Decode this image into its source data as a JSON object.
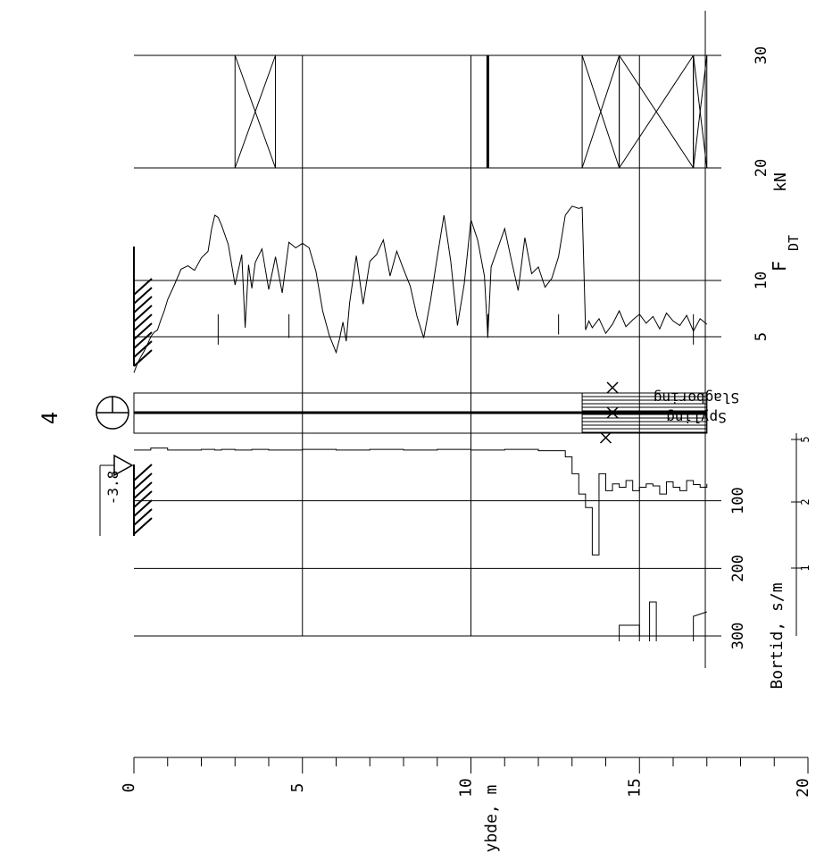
{
  "title": "4",
  "labels": {
    "depth_axis": "Dybde, m",
    "force_axis": "kN",
    "force_symbol": "F",
    "force_subscript": "DT",
    "drilltime_axis": "Bortid, s/m",
    "water_level": "-3.8",
    "flush_label": "Spyling",
    "hammer_label": "Slagboring"
  },
  "chart_data": {
    "type": "line",
    "orientation": "depth-down (rotated 90°)",
    "depth_axis": {
      "label": "Dybde, m",
      "range": [
        0,
        20
      ],
      "ticks": [
        0,
        5,
        10,
        15,
        20
      ],
      "minor_step": 1
    },
    "force_axis": {
      "label": "kN",
      "range": [
        0,
        30
      ],
      "ticks": [
        5,
        10,
        20,
        30
      ]
    },
    "drilltime_axis": {
      "label": "Bortid, s/m",
      "ticks": [
        100,
        200,
        300
      ],
      "secondary_ticks": [
        "1",
        "2",
        "5"
      ]
    },
    "water_level_depth": -3.8,
    "termination_depth": 17.0,
    "series": [
      {
        "name": "F_DT",
        "axis": "force",
        "depth": [
          0.0,
          0.1,
          0.2,
          0.3,
          0.4,
          0.5,
          0.6,
          0.7,
          0.8,
          0.9,
          1.0,
          1.2,
          1.4,
          1.6,
          1.8,
          2.0,
          2.2,
          2.3,
          2.4,
          2.5,
          2.6,
          2.8,
          3.0,
          3.2,
          3.3,
          3.4,
          3.5,
          3.6,
          3.8,
          4.0,
          4.2,
          4.4,
          4.6,
          4.8,
          5.0,
          5.2,
          5.4,
          5.6,
          5.8,
          6.0,
          6.1,
          6.2,
          6.3,
          6.4,
          6.5,
          6.6,
          6.8,
          7.0,
          7.2,
          7.4,
          7.6,
          7.8,
          8.0,
          8.2,
          8.4,
          8.6,
          8.8,
          9.0,
          9.2,
          9.4,
          9.6,
          9.8,
          10.0,
          10.2,
          10.4,
          10.5,
          10.6,
          10.8,
          11.0,
          11.2,
          11.4,
          11.6,
          11.8,
          12.0,
          12.2,
          12.4,
          12.6,
          12.8,
          13.0,
          13.2,
          13.3,
          13.4,
          13.5,
          13.6,
          13.8,
          14.0,
          14.2,
          14.4,
          14.6,
          14.8,
          15.0,
          15.2,
          15.4,
          15.6,
          15.8,
          16.0,
          16.2,
          16.4,
          16.6,
          16.8,
          17.0
        ],
        "values": [
          1.8,
          2.6,
          3.2,
          3.7,
          4.3,
          5.0,
          5.4,
          5.6,
          6.5,
          7.3,
          8.3,
          9.6,
          11.0,
          11.3,
          10.9,
          12.0,
          12.6,
          14.5,
          15.8,
          15.6,
          14.9,
          13.2,
          9.6,
          12.3,
          5.8,
          11.4,
          9.3,
          11.6,
          12.8,
          9.2,
          12.1,
          8.9,
          13.4,
          12.9,
          13.3,
          12.9,
          10.8,
          7.3,
          5.1,
          3.6,
          4.8,
          6.3,
          4.6,
          8.0,
          10.1,
          12.2,
          7.9,
          11.7,
          12.3,
          13.6,
          10.4,
          12.6,
          11.0,
          9.5,
          6.8,
          4.9,
          8.2,
          12.1,
          15.8,
          11.7,
          6.0,
          9.7,
          15.4,
          13.6,
          10.4,
          5.0,
          11.2,
          12.9,
          14.6,
          11.8,
          9.1,
          13.8,
          10.6,
          11.2,
          9.4,
          10.2,
          12.1,
          15.8,
          16.6,
          16.4,
          16.5,
          5.6,
          6.4,
          5.8,
          6.6,
          5.3,
          6.1,
          7.3,
          5.9,
          6.5,
          7.0,
          6.2,
          6.8,
          5.7,
          7.1,
          6.4,
          6.0,
          6.9,
          5.5,
          6.6,
          6.1
        ]
      },
      {
        "name": "Bortid",
        "axis": "drilltime",
        "depth": [
          0.0,
          0.5,
          1.0,
          2.0,
          2.4,
          2.6,
          3.0,
          3.5,
          4.0,
          5.0,
          6.0,
          7.0,
          8.0,
          9.0,
          10.0,
          11.0,
          12.0,
          12.8,
          13.0,
          13.2,
          13.4,
          13.6,
          13.8,
          14.0,
          14.2,
          14.4,
          14.6,
          14.8,
          15.0,
          15.2,
          15.4,
          15.6,
          15.8,
          16.0,
          16.2,
          16.4,
          16.6,
          16.8,
          17.0
        ],
        "values": [
          25,
          22,
          25,
          24,
          25,
          24,
          25,
          24,
          25,
          24,
          25,
          24,
          25,
          24,
          25,
          24,
          26,
          35,
          60,
          90,
          110,
          180,
          60,
          85,
          75,
          80,
          70,
          85,
          80,
          75,
          78,
          90,
          72,
          80,
          85,
          70,
          76,
          80,
          75
        ]
      }
    ],
    "hatch_regions": [
      {
        "label": "Spyling",
        "from": 13.3,
        "to": 17.0
      },
      {
        "label": "Slagboring",
        "from": 13.3,
        "to": 17.0
      }
    ],
    "grid": true
  }
}
